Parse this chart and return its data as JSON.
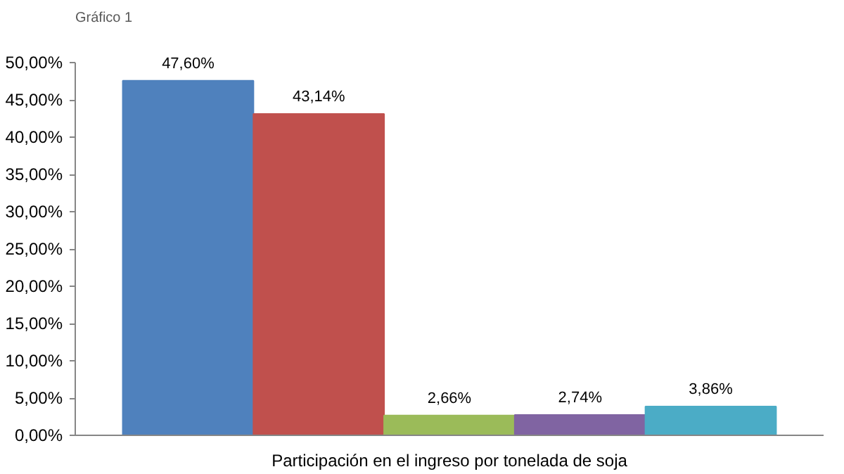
{
  "chart_data": {
    "type": "bar",
    "title": "Gráfico 1",
    "categories": [
      "Participación en el ingreso por tonelada de soja"
    ],
    "series": [
      {
        "color": "#4f81bd",
        "values": [
          47.6
        ],
        "value_labels": [
          "47,60%"
        ]
      },
      {
        "color": "#c0504d",
        "values": [
          43.14
        ],
        "value_labels": [
          "43,14%"
        ]
      },
      {
        "color": "#9bbb59",
        "values": [
          2.66
        ],
        "value_labels": [
          "2,66%"
        ]
      },
      {
        "color": "#8064a2",
        "values": [
          2.74
        ],
        "value_labels": [
          "2,74%"
        ]
      },
      {
        "color": "#4bacc6",
        "values": [
          3.86
        ],
        "value_labels": [
          "3,86%"
        ]
      }
    ],
    "ylim": [
      0,
      50
    ],
    "yticks": [
      {
        "value": 0,
        "label": "0,00%"
      },
      {
        "value": 5,
        "label": "5,00%"
      },
      {
        "value": 10,
        "label": "10,00%"
      },
      {
        "value": 15,
        "label": "15,00%"
      },
      {
        "value": 20,
        "label": "20,00%"
      },
      {
        "value": 25,
        "label": "25,00%"
      },
      {
        "value": 30,
        "label": "30,00%"
      },
      {
        "value": 35,
        "label": "35,00%"
      },
      {
        "value": 40,
        "label": "40,00%"
      },
      {
        "value": 45,
        "label": "45,00%"
      },
      {
        "value": 50,
        "label": "50,00%"
      }
    ],
    "grid": false
  }
}
